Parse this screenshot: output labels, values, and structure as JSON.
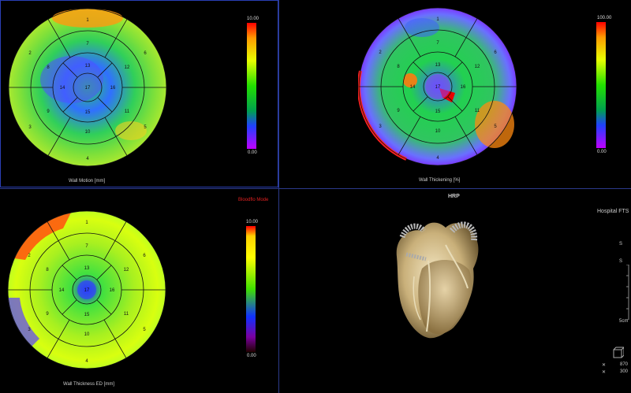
{
  "panels": {
    "wall_motion": {
      "caption": "Wall Motion [mm]",
      "scale_max": "10.00",
      "scale_min": "0.00"
    },
    "wall_thickening": {
      "caption": "Wall Thickening [%]",
      "scale_max": "100.00",
      "scale_min": "0.00"
    },
    "wall_thickness": {
      "caption": "Wall Thickness ED [mm]",
      "mode_label": "Bloodflo Mode",
      "scale_max": "10.00",
      "scale_min": "0.00"
    },
    "volume": {
      "title": "HRP",
      "institution": "Hospital FTS",
      "scale_label": "5cm",
      "window_width": "870",
      "window_level": "300",
      "view_glyph": "S"
    }
  },
  "segments": [
    "1",
    "2",
    "3",
    "4",
    "5",
    "6",
    "7",
    "8",
    "9",
    "10",
    "11",
    "12",
    "13",
    "14",
    "15",
    "16",
    "17"
  ],
  "colors": {
    "separator": "#2b3a8a",
    "active_border": "#2a3fb5",
    "mode_label": "#e02020"
  }
}
